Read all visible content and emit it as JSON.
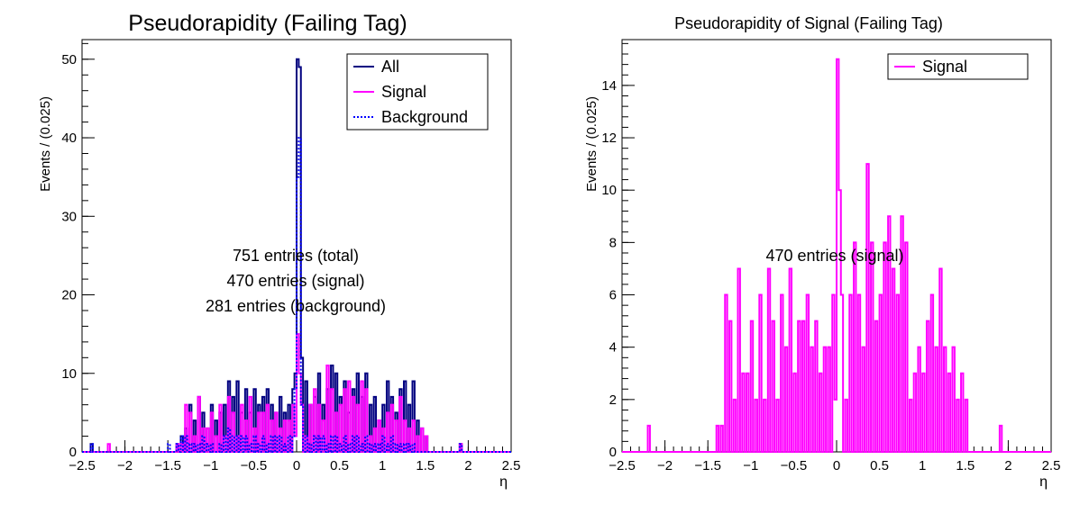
{
  "chart_data": [
    {
      "type": "histogram",
      "title": "Pseudorapidity (Failing Tag)",
      "xlabel": "η",
      "ylabel": "Events / (0.025)",
      "xlim": [
        -2.5,
        2.5
      ],
      "ylim": [
        0,
        52.5
      ],
      "x_ticks": [
        -2.5,
        -2,
        -1.5,
        -1,
        -0.5,
        0,
        0.5,
        1,
        1.5,
        2,
        2.5
      ],
      "x_tick_labels": [
        "−2.5",
        "−2",
        "−1.5",
        "−1",
        "−0.5",
        "0",
        "0.5",
        "1",
        "1.5",
        "2",
        "2.5"
      ],
      "y_ticks": [
        0,
        10,
        20,
        30,
        40,
        50
      ],
      "y_tick_labels": [
        "0",
        "10",
        "20",
        "30",
        "40",
        "50"
      ],
      "bin_width": 0.025,
      "legend": {
        "position": "top-right",
        "entries": [
          "All",
          "Signal",
          "Background"
        ]
      },
      "annotations": [
        "751 entries (total)",
        "470 entries (signal)",
        "281 entries (background)"
      ],
      "series": [
        {
          "name": "All",
          "color": "#000080",
          "style": "solid",
          "points": [
            [
              -2.4,
              1
            ],
            [
              -1.4,
              1
            ],
            [
              -1.35,
              2
            ],
            [
              -1.3,
              3
            ],
            [
              -1.25,
              6
            ],
            [
              -1.2,
              4
            ],
            [
              -1.15,
              7
            ],
            [
              -1.1,
              5
            ],
            [
              -1.05,
              3
            ],
            [
              -1.0,
              6
            ],
            [
              -0.95,
              4
            ],
            [
              -0.9,
              5
            ],
            [
              -0.85,
              6
            ],
            [
              -0.8,
              9
            ],
            [
              -0.75,
              7
            ],
            [
              -0.7,
              9
            ],
            [
              -0.65,
              5
            ],
            [
              -0.6,
              8
            ],
            [
              -0.55,
              5
            ],
            [
              -0.5,
              8
            ],
            [
              -0.45,
              6
            ],
            [
              -0.4,
              7
            ],
            [
              -0.35,
              8
            ],
            [
              -0.3,
              6
            ],
            [
              -0.25,
              5
            ],
            [
              -0.2,
              7
            ],
            [
              -0.15,
              5
            ],
            [
              -0.1,
              6
            ],
            [
              -0.05,
              8
            ],
            [
              -0.025,
              10
            ],
            [
              0.0,
              50
            ],
            [
              0.025,
              49
            ],
            [
              0.05,
              12
            ],
            [
              0.1,
              9
            ],
            [
              0.15,
              6
            ],
            [
              0.2,
              7
            ],
            [
              0.25,
              10
            ],
            [
              0.3,
              6
            ],
            [
              0.35,
              8
            ],
            [
              0.4,
              11
            ],
            [
              0.45,
              10
            ],
            [
              0.5,
              7
            ],
            [
              0.55,
              9
            ],
            [
              0.6,
              5
            ],
            [
              0.65,
              8
            ],
            [
              0.7,
              10
            ],
            [
              0.75,
              7
            ],
            [
              0.8,
              10
            ],
            [
              0.85,
              6
            ],
            [
              0.9,
              7
            ],
            [
              0.95,
              4
            ],
            [
              1.0,
              6
            ],
            [
              1.05,
              9
            ],
            [
              1.1,
              7
            ],
            [
              1.15,
              5
            ],
            [
              1.2,
              8
            ],
            [
              1.25,
              9
            ],
            [
              1.3,
              6
            ],
            [
              1.35,
              9
            ],
            [
              1.4,
              4
            ],
            [
              1.45,
              3
            ],
            [
              1.5,
              2
            ],
            [
              1.9,
              1
            ]
          ]
        },
        {
          "name": "Signal",
          "color": "#ff00ff",
          "style": "solid",
          "points": [
            [
              -2.2,
              1
            ],
            [
              -1.4,
              1
            ],
            [
              -1.35,
              1
            ],
            [
              -1.3,
              6
            ],
            [
              -1.25,
              5
            ],
            [
              -1.2,
              2
            ],
            [
              -1.15,
              7
            ],
            [
              -1.1,
              3
            ],
            [
              -1.05,
              3
            ],
            [
              -1.0,
              5
            ],
            [
              -0.95,
              2
            ],
            [
              -0.9,
              6
            ],
            [
              -0.85,
              2
            ],
            [
              -0.8,
              7
            ],
            [
              -0.75,
              5
            ],
            [
              -0.7,
              2
            ],
            [
              -0.65,
              6
            ],
            [
              -0.6,
              4
            ],
            [
              -0.55,
              7
            ],
            [
              -0.5,
              3
            ],
            [
              -0.45,
              5
            ],
            [
              -0.4,
              5
            ],
            [
              -0.35,
              6
            ],
            [
              -0.3,
              4
            ],
            [
              -0.25,
              5
            ],
            [
              -0.2,
              3
            ],
            [
              -0.15,
              4
            ],
            [
              -0.1,
              4
            ],
            [
              -0.05,
              6
            ],
            [
              -0.025,
              2
            ],
            [
              0.0,
              15
            ],
            [
              0.025,
              10
            ],
            [
              0.05,
              6
            ],
            [
              0.1,
              2
            ],
            [
              0.15,
              6
            ],
            [
              0.2,
              8
            ],
            [
              0.25,
              6
            ],
            [
              0.3,
              4
            ],
            [
              0.35,
              11
            ],
            [
              0.4,
              8
            ],
            [
              0.45,
              5
            ],
            [
              0.5,
              6
            ],
            [
              0.55,
              8
            ],
            [
              0.6,
              9
            ],
            [
              0.65,
              7
            ],
            [
              0.7,
              6
            ],
            [
              0.75,
              9
            ],
            [
              0.8,
              8
            ],
            [
              0.85,
              2
            ],
            [
              0.9,
              3
            ],
            [
              0.95,
              4
            ],
            [
              1.0,
              3
            ],
            [
              1.05,
              5
            ],
            [
              1.1,
              6
            ],
            [
              1.15,
              4
            ],
            [
              1.2,
              7
            ],
            [
              1.25,
              4
            ],
            [
              1.3,
              3
            ],
            [
              1.35,
              4
            ],
            [
              1.4,
              2
            ],
            [
              1.45,
              3
            ],
            [
              1.5,
              2
            ],
            [
              1.9,
              1
            ]
          ]
        },
        {
          "name": "Background",
          "color": "#0000ff",
          "style": "dotted",
          "points": [
            [
              -2.4,
              1
            ],
            [
              -1.5,
              1
            ],
            [
              -1.4,
              1
            ],
            [
              -1.35,
              2
            ],
            [
              -1.3,
              2
            ],
            [
              -1.25,
              1
            ],
            [
              -1.2,
              1
            ],
            [
              -1.15,
              1
            ],
            [
              -1.1,
              2
            ],
            [
              -1.05,
              1
            ],
            [
              -1.0,
              1
            ],
            [
              -0.9,
              1
            ],
            [
              -0.85,
              2
            ],
            [
              -0.8,
              3
            ],
            [
              -0.75,
              2
            ],
            [
              -0.7,
              2
            ],
            [
              -0.65,
              2
            ],
            [
              -0.6,
              2
            ],
            [
              -0.55,
              1
            ],
            [
              -0.5,
              2
            ],
            [
              -0.45,
              1
            ],
            [
              -0.4,
              2
            ],
            [
              -0.35,
              1
            ],
            [
              -0.3,
              2
            ],
            [
              -0.25,
              2
            ],
            [
              -0.2,
              2
            ],
            [
              -0.15,
              1
            ],
            [
              -0.1,
              2
            ],
            [
              -0.05,
              2
            ],
            [
              -0.025,
              8
            ],
            [
              0.0,
              35
            ],
            [
              0.025,
              40
            ],
            [
              0.05,
              6
            ],
            [
              0.1,
              2
            ],
            [
              0.15,
              1
            ],
            [
              0.2,
              2
            ],
            [
              0.25,
              2
            ],
            [
              0.3,
              2
            ],
            [
              0.35,
              1
            ],
            [
              0.4,
              2
            ],
            [
              0.45,
              2
            ],
            [
              0.5,
              1
            ],
            [
              0.55,
              2
            ],
            [
              0.6,
              1
            ],
            [
              0.65,
              2
            ],
            [
              0.7,
              2
            ],
            [
              0.75,
              1
            ],
            [
              0.8,
              2
            ],
            [
              0.85,
              1
            ],
            [
              0.9,
              1
            ],
            [
              0.95,
              1
            ],
            [
              1.0,
              2
            ],
            [
              1.05,
              1
            ],
            [
              1.1,
              2
            ],
            [
              1.15,
              1
            ],
            [
              1.2,
              1
            ],
            [
              1.25,
              1
            ],
            [
              1.3,
              1
            ],
            [
              1.35,
              1
            ],
            [
              1.9,
              1
            ]
          ]
        }
      ]
    },
    {
      "type": "histogram",
      "title": "Pseudorapidity of Signal (Failing Tag)",
      "xlabel": "η",
      "ylabel": "Events / (0.025)",
      "xlim": [
        -2.5,
        2.5
      ],
      "ylim": [
        0,
        15.75
      ],
      "x_ticks": [
        -2.5,
        -2,
        -1.5,
        -1,
        -0.5,
        0,
        0.5,
        1,
        1.5,
        2,
        2.5
      ],
      "x_tick_labels": [
        "−2.5",
        "−2",
        "−1.5",
        "−1",
        "−0.5",
        "0",
        "0.5",
        "1",
        "1.5",
        "2",
        "2.5"
      ],
      "y_ticks": [
        0,
        2,
        4,
        6,
        8,
        10,
        12,
        14
      ],
      "y_tick_labels": [
        "0",
        "2",
        "4",
        "6",
        "8",
        "10",
        "12",
        "14"
      ],
      "bin_width": 0.025,
      "legend": {
        "position": "top-right",
        "entries": [
          "Signal"
        ]
      },
      "annotations": [
        "470 entries (signal)"
      ],
      "series": [
        {
          "name": "Signal",
          "color": "#ff00ff",
          "style": "solid",
          "points": [
            [
              -2.2,
              1
            ],
            [
              -1.4,
              1
            ],
            [
              -1.35,
              1
            ],
            [
              -1.3,
              6
            ],
            [
              -1.25,
              5
            ],
            [
              -1.2,
              2
            ],
            [
              -1.15,
              7
            ],
            [
              -1.1,
              3
            ],
            [
              -1.05,
              3
            ],
            [
              -1.0,
              5
            ],
            [
              -0.95,
              2
            ],
            [
              -0.9,
              6
            ],
            [
              -0.85,
              2
            ],
            [
              -0.8,
              7
            ],
            [
              -0.75,
              5
            ],
            [
              -0.7,
              2
            ],
            [
              -0.65,
              6
            ],
            [
              -0.6,
              4
            ],
            [
              -0.55,
              7
            ],
            [
              -0.5,
              3
            ],
            [
              -0.45,
              5
            ],
            [
              -0.4,
              5
            ],
            [
              -0.35,
              6
            ],
            [
              -0.3,
              4
            ],
            [
              -0.25,
              5
            ],
            [
              -0.2,
              3
            ],
            [
              -0.15,
              4
            ],
            [
              -0.1,
              4
            ],
            [
              -0.05,
              6
            ],
            [
              -0.025,
              2
            ],
            [
              0.0,
              15
            ],
            [
              0.025,
              10
            ],
            [
              0.05,
              6
            ],
            [
              0.1,
              2
            ],
            [
              0.15,
              6
            ],
            [
              0.2,
              8
            ],
            [
              0.25,
              6
            ],
            [
              0.3,
              4
            ],
            [
              0.35,
              11
            ],
            [
              0.4,
              8
            ],
            [
              0.45,
              5
            ],
            [
              0.5,
              6
            ],
            [
              0.55,
              8
            ],
            [
              0.6,
              9
            ],
            [
              0.65,
              7
            ],
            [
              0.7,
              6
            ],
            [
              0.75,
              9
            ],
            [
              0.8,
              8
            ],
            [
              0.85,
              2
            ],
            [
              0.9,
              3
            ],
            [
              0.95,
              4
            ],
            [
              1.0,
              3
            ],
            [
              1.05,
              5
            ],
            [
              1.1,
              6
            ],
            [
              1.15,
              4
            ],
            [
              1.2,
              7
            ],
            [
              1.25,
              4
            ],
            [
              1.3,
              3
            ],
            [
              1.35,
              4
            ],
            [
              1.4,
              2
            ],
            [
              1.45,
              3
            ],
            [
              1.5,
              2
            ],
            [
              1.9,
              1
            ]
          ]
        }
      ]
    }
  ]
}
